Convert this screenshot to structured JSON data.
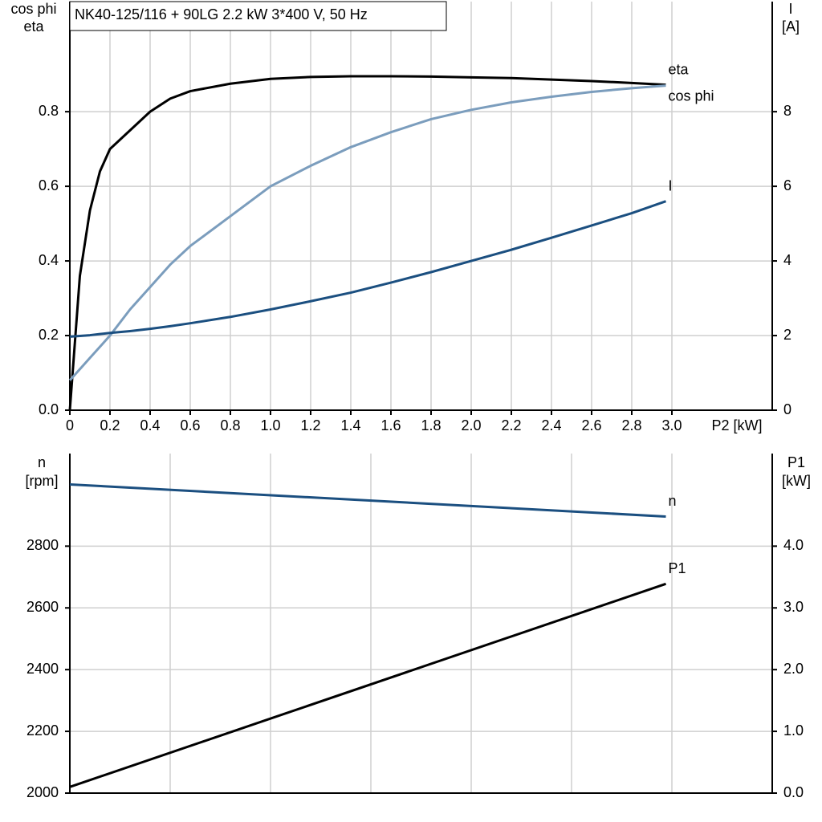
{
  "chart_data": [
    {
      "type": "line",
      "title": "NK40-125/116 + 90LG   2.2 kW   3*400 V, 50 Hz",
      "x_label": "P2 [kW]",
      "y_label": [
        "cos phi",
        "eta"
      ],
      "y2_label": [
        "I",
        "[A]"
      ],
      "x": [
        0,
        0.05,
        0.1,
        0.15,
        0.2,
        0.3,
        0.4,
        0.5,
        0.6,
        0.8,
        1.0,
        1.2,
        1.4,
        1.6,
        1.8,
        2.0,
        2.2,
        2.4,
        2.6,
        2.8,
        2.97
      ],
      "series": [
        {
          "name": "eta",
          "color": "#000000",
          "values": [
            0,
            0.36,
            0.535,
            0.64,
            0.7,
            0.75,
            0.8,
            0.835,
            0.855,
            0.875,
            0.888,
            0.893,
            0.895,
            0.895,
            0.894,
            0.892,
            0.89,
            0.886,
            0.882,
            0.877,
            0.872
          ]
        },
        {
          "name": "cos phi",
          "color": "#7b9dbd",
          "values": [
            0.08,
            0.11,
            0.14,
            0.17,
            0.2,
            0.27,
            0.33,
            0.39,
            0.44,
            0.52,
            0.6,
            0.655,
            0.705,
            0.745,
            0.78,
            0.805,
            0.825,
            0.84,
            0.853,
            0.863,
            0.87
          ]
        },
        {
          "name": "I",
          "color": "#1b4f80",
          "axis": "y2",
          "values": [
            1.97,
            1.99,
            2.01,
            2.04,
            2.07,
            2.12,
            2.18,
            2.25,
            2.33,
            2.5,
            2.7,
            2.92,
            3.15,
            3.42,
            3.7,
            4.0,
            4.3,
            4.62,
            4.95,
            5.28,
            5.6
          ]
        }
      ],
      "xlim": [
        0,
        3.5
      ],
      "xticks": [
        0,
        0.2,
        0.4,
        0.6,
        0.8,
        {
          "value": 1,
          "label": "1.0"
        },
        1.2,
        1.4,
        1.6,
        1.8,
        {
          "value": 2,
          "label": "2.0"
        },
        2.2,
        2.4,
        2.6,
        2.8,
        {
          "value": 3,
          "label": "3.0"
        }
      ],
      "xtick_labels": true,
      "ylim": [
        0,
        1.095
      ],
      "yticks": [
        {
          "value": 0,
          "label": "0.0"
        },
        0.2,
        0.4,
        0.6,
        0.8
      ],
      "y2lim": [
        0,
        10.95
      ],
      "y2ticks": [
        0,
        2,
        4,
        6,
        8
      ],
      "grid": true
    },
    {
      "type": "line",
      "y_label": [
        "n",
        "[rpm]"
      ],
      "y2_label": [
        "P1",
        "[kW]"
      ],
      "x": [
        0,
        2.97
      ],
      "series": [
        {
          "name": "n",
          "color": "#1b4f80",
          "values": [
            3000,
            2896
          ]
        },
        {
          "name": "P1",
          "color": "#000000",
          "axis": "y2",
          "values": [
            0.1,
            3.39
          ]
        }
      ],
      "xlim": [
        0,
        3.5
      ],
      "xticks": [
        0,
        0.5,
        1,
        1.5,
        2,
        2.5,
        3
      ],
      "xtick_labels": false,
      "ylim": [
        2000,
        3100
      ],
      "yticks": [
        2000,
        2200,
        2400,
        2600,
        2800
      ],
      "y2lim": [
        0,
        5.5
      ],
      "y2ticks": [
        {
          "value": 0,
          "label": "0.0"
        },
        {
          "value": 1,
          "label": "1.0"
        },
        {
          "value": 2,
          "label": "2.0"
        },
        {
          "value": 3,
          "label": "3.0"
        },
        {
          "value": 4,
          "label": "4.0"
        }
      ],
      "grid": true
    }
  ]
}
